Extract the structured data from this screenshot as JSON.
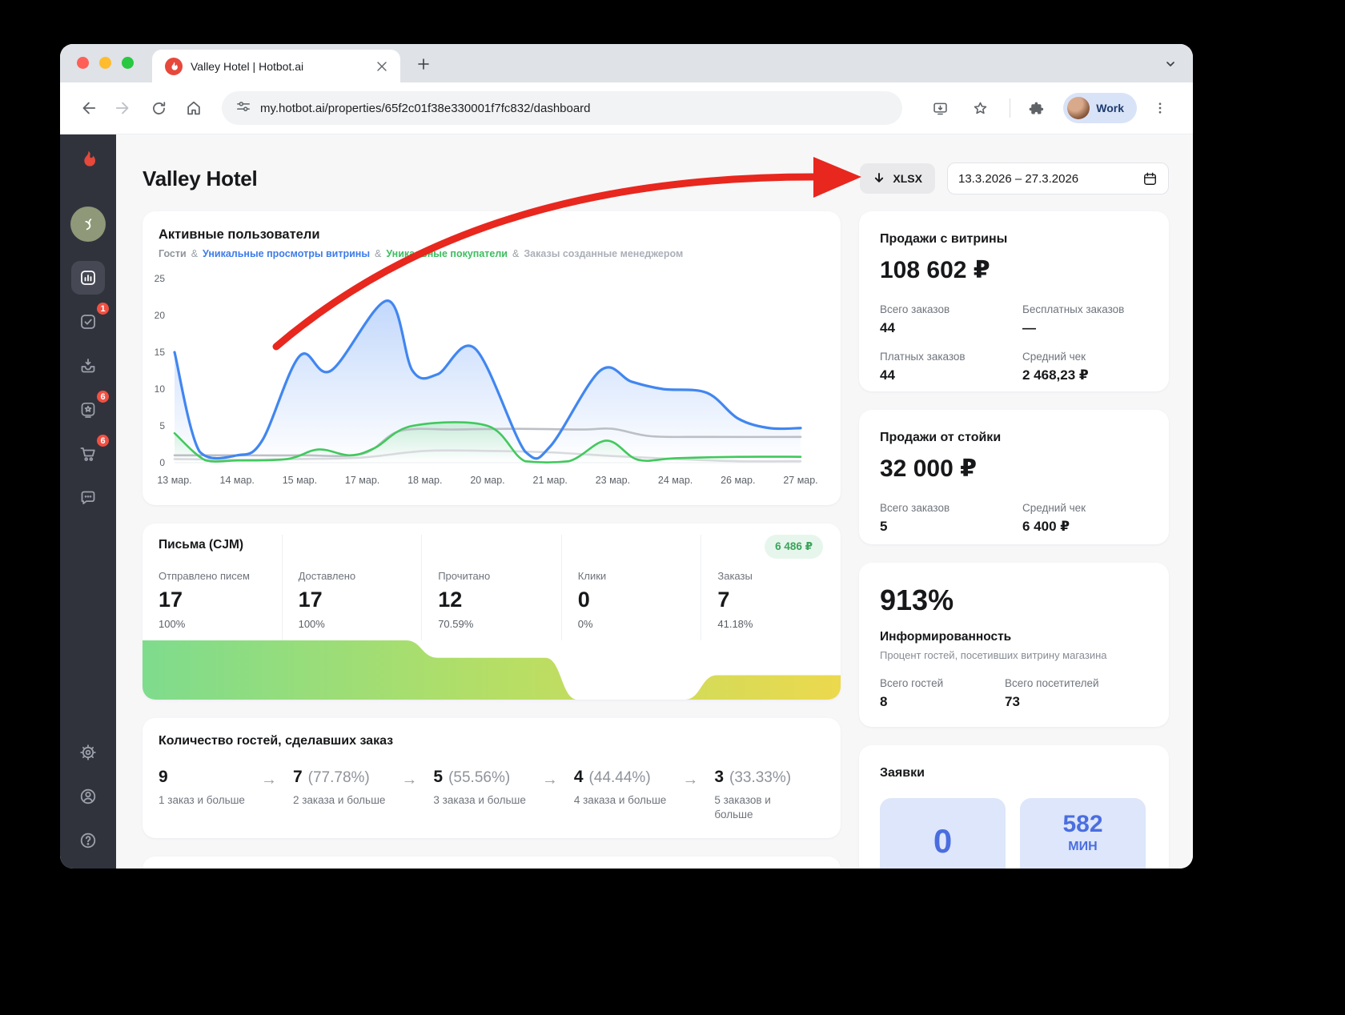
{
  "browser": {
    "tab_title": "Valley Hotel | Hotbot.ai",
    "url": "my.hotbot.ai/properties/65f2c01f38e330001f7fc832/dashboard",
    "profile_label": "Work"
  },
  "sidebar": {
    "badges": {
      "tasks": "1",
      "reviews": "6",
      "cart": "6"
    }
  },
  "page": {
    "title": "Valley Hotel",
    "export_button": "XLSX",
    "date_range": "13.3.2026 – 27.3.2026"
  },
  "active_users_card": {
    "title": "Активные пользователи",
    "separator": "&",
    "legend": [
      {
        "label": "Гости",
        "color": "#8f949c"
      },
      {
        "label": "Уникальные просмотры витрины",
        "color": "#3f7ce8"
      },
      {
        "label": "Уникальные покупатели",
        "color": "#3dbd5f"
      },
      {
        "label": "Заказы созданные менеджером",
        "color": "#abb0b8"
      }
    ]
  },
  "chart_data": {
    "type": "line",
    "title": "Активные пользователи",
    "x_labels": [
      "13 мар.",
      "14 мар.",
      "15 мар.",
      "17 мар.",
      "18 мар.",
      "20 мар.",
      "21 мар.",
      "23 мар.",
      "24 мар.",
      "26 мар.",
      "27 мар."
    ],
    "ylim": [
      0,
      25
    ],
    "yticks": [
      0,
      5,
      10,
      15,
      20,
      25
    ],
    "legend_position": "top",
    "grid": false,
    "series": [
      {
        "name": "Уникальные просмотры витрины",
        "color": "#4186f0",
        "fill": true,
        "points": [
          [
            0,
            15
          ],
          [
            0.4,
            1.5
          ],
          [
            1,
            1
          ],
          [
            1.4,
            3
          ],
          [
            2,
            14.5
          ],
          [
            2.5,
            12.5
          ],
          [
            3.4,
            22
          ],
          [
            3.8,
            12.5
          ],
          [
            4.2,
            12
          ],
          [
            4.8,
            15.5
          ],
          [
            5.6,
            1.5
          ],
          [
            6,
            2.2
          ],
          [
            6.8,
            12.5
          ],
          [
            7.3,
            11
          ],
          [
            7.8,
            10
          ],
          [
            8.5,
            9.5
          ],
          [
            9,
            6
          ],
          [
            9.5,
            4.7
          ],
          [
            10,
            4.7
          ]
        ]
      },
      {
        "name": "Уникальные покупатели",
        "color": "#41c95d",
        "fill": true,
        "points": [
          [
            0,
            4
          ],
          [
            0.5,
            0.3
          ],
          [
            1,
            0.3
          ],
          [
            1.8,
            0.5
          ],
          [
            2.3,
            1.8
          ],
          [
            2.8,
            1
          ],
          [
            3.2,
            2
          ],
          [
            3.8,
            5
          ],
          [
            5,
            5
          ],
          [
            5.6,
            0.2
          ],
          [
            6.3,
            0.2
          ],
          [
            6.9,
            3
          ],
          [
            7.4,
            0.4
          ],
          [
            8,
            0.6
          ],
          [
            9,
            0.8
          ],
          [
            10,
            0.8
          ]
        ]
      },
      {
        "name": "Гости",
        "color": "#bcbfc6",
        "fill": false,
        "points": [
          [
            0,
            1
          ],
          [
            1,
            1
          ],
          [
            2,
            1
          ],
          [
            3,
            1.2
          ],
          [
            3.6,
            4.3
          ],
          [
            4.5,
            4.5
          ],
          [
            5.5,
            4.6
          ],
          [
            6.5,
            4.5
          ],
          [
            7,
            4.6
          ],
          [
            7.6,
            3.6
          ],
          [
            8.5,
            3.5
          ],
          [
            10,
            3.5
          ]
        ]
      },
      {
        "name": "Заказы созданные менеджером",
        "color": "#d8dade",
        "fill": false,
        "points": [
          [
            0,
            0.5
          ],
          [
            1,
            0.4
          ],
          [
            2,
            0.5
          ],
          [
            3,
            0.7
          ],
          [
            4,
            1.6
          ],
          [
            5,
            1.6
          ],
          [
            6,
            1.4
          ],
          [
            7,
            0.9
          ],
          [
            8,
            0.5
          ],
          [
            9,
            0.2
          ],
          [
            10,
            0.2
          ]
        ]
      }
    ]
  },
  "emails_card": {
    "title": "Письма (CJM)",
    "badge": "6 486 ₽",
    "columns": [
      {
        "label": "Отправлено писем",
        "value": "17",
        "percent": "100%",
        "funnel": 100
      },
      {
        "label": "Доставлено",
        "value": "17",
        "percent": "100%",
        "funnel": 100
      },
      {
        "label": "Прочитано",
        "value": "12",
        "percent": "70.59%",
        "funnel": 70.59
      },
      {
        "label": "Клики",
        "value": "0",
        "percent": "0%",
        "funnel": 0
      },
      {
        "label": "Заказы",
        "value": "7",
        "percent": "41.18%",
        "funnel": 41.18
      }
    ]
  },
  "guests_orders_card": {
    "title": "Количество гостей, сделавших заказ",
    "arrow": "→",
    "steps": [
      {
        "value": "9",
        "percent": "",
        "label": "1 заказ и больше"
      },
      {
        "value": "7",
        "percent": "(77.78%)",
        "label": "2 заказа и больше"
      },
      {
        "value": "5",
        "percent": "(55.56%)",
        "label": "3 заказа и больше"
      },
      {
        "value": "4",
        "percent": "(44.44%)",
        "label": "4 заказа и больше"
      },
      {
        "value": "3",
        "percent": "(33.33%)",
        "label": "5 заказов и больше"
      }
    ]
  },
  "showcase_sales_card": {
    "title": "Продажи с витрины",
    "total": "108 602 ₽",
    "stats": [
      {
        "label": "Всего заказов",
        "value": "44"
      },
      {
        "label": "Бесплатных заказов",
        "value": "—"
      },
      {
        "label": "Платных заказов",
        "value": "44"
      },
      {
        "label": "Средний чек",
        "value": "2 468,23 ₽"
      }
    ]
  },
  "desk_sales_card": {
    "title": "Продажи от стойки",
    "total": "32 000 ₽",
    "stats": [
      {
        "label": "Всего заказов",
        "value": "5"
      },
      {
        "label": "Средний чек",
        "value": "6 400 ₽"
      }
    ]
  },
  "awareness_card": {
    "value": "913%",
    "title": "Информированность",
    "subtitle": "Процент гостей, посетивших витрину магазина",
    "stats": [
      {
        "label": "Всего гостей",
        "value": "8"
      },
      {
        "label": "Всего посетителей",
        "value": "73"
      }
    ]
  },
  "requests_card": {
    "title": "Заявки",
    "tiles": [
      {
        "value": "0",
        "unit": ""
      },
      {
        "value": "582",
        "unit": "МИН"
      }
    ]
  }
}
